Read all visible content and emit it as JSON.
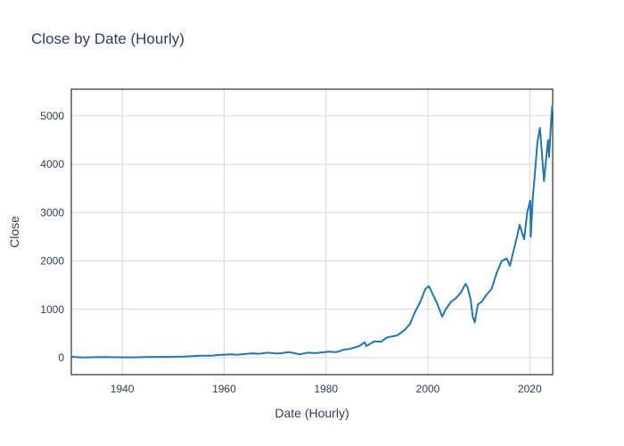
{
  "chart_data": {
    "type": "line",
    "title": "Close by Date (Hourly)",
    "xlabel": "Date (Hourly)",
    "ylabel": "Close",
    "xlim": [
      1930.0,
      2024.5
    ],
    "ylim": [
      -350,
      5550
    ],
    "x_ticks": [
      1940,
      1960,
      1980,
      2000,
      2020
    ],
    "y_ticks": [
      0,
      1000,
      2000,
      3000,
      4000,
      5000
    ],
    "grid": true,
    "line_color": "#1f77b4",
    "series": [
      {
        "x": [
          1930.0,
          1931.5,
          1932.5,
          1934.0,
          1936.5,
          1937.5,
          1938.5,
          1942.0,
          1945.0,
          1946.5,
          1949.0,
          1952.0,
          1955.0,
          1957.8,
          1959.0,
          1961.5,
          1962.5,
          1965.5,
          1966.8,
          1968.5,
          1970.5,
          1972.8,
          1974.8,
          1976.5,
          1978.0,
          1980.5,
          1982.0,
          1983.5,
          1985.0,
          1986.5,
          1987.6,
          1987.9,
          1989.5,
          1990.8,
          1992.0,
          1994.0,
          1995.5,
          1996.5,
          1997.5,
          1998.5,
          1999.5,
          2000.2,
          2000.8,
          2001.7,
          2002.8,
          2003.5,
          2004.5,
          2005.5,
          2006.5,
          2007.4,
          2007.8,
          2008.4,
          2008.8,
          2009.2,
          2009.8,
          2010.5,
          2011.5,
          2012.5,
          2013.5,
          2014.5,
          2015.5,
          2016.1,
          2016.8,
          2017.5,
          2018.0,
          2018.9,
          2019.5,
          2020.1,
          2020.2,
          2020.6,
          2021.0,
          2021.5,
          2022.0,
          2022.4,
          2022.8,
          2023.3,
          2023.6,
          2023.8,
          2024.2,
          2024.4
        ],
        "y": [
          20,
          10,
          5,
          10,
          15,
          12,
          10,
          8,
          15,
          17,
          16,
          24,
          40,
          45,
          58,
          70,
          60,
          90,
          80,
          105,
          85,
          115,
          70,
          105,
          95,
          125,
          115,
          165,
          190,
          240,
          320,
          240,
          340,
          330,
          420,
          460,
          580,
          700,
          950,
          1150,
          1420,
          1480,
          1350,
          1150,
          850,
          1000,
          1150,
          1230,
          1350,
          1530,
          1450,
          1200,
          850,
          730,
          1100,
          1150,
          1300,
          1420,
          1750,
          2000,
          2050,
          1900,
          2200,
          2500,
          2750,
          2450,
          3000,
          3250,
          2500,
          3300,
          3800,
          4450,
          4750,
          4200,
          3650,
          4200,
          4500,
          4150,
          4900,
          5200
        ]
      }
    ]
  }
}
